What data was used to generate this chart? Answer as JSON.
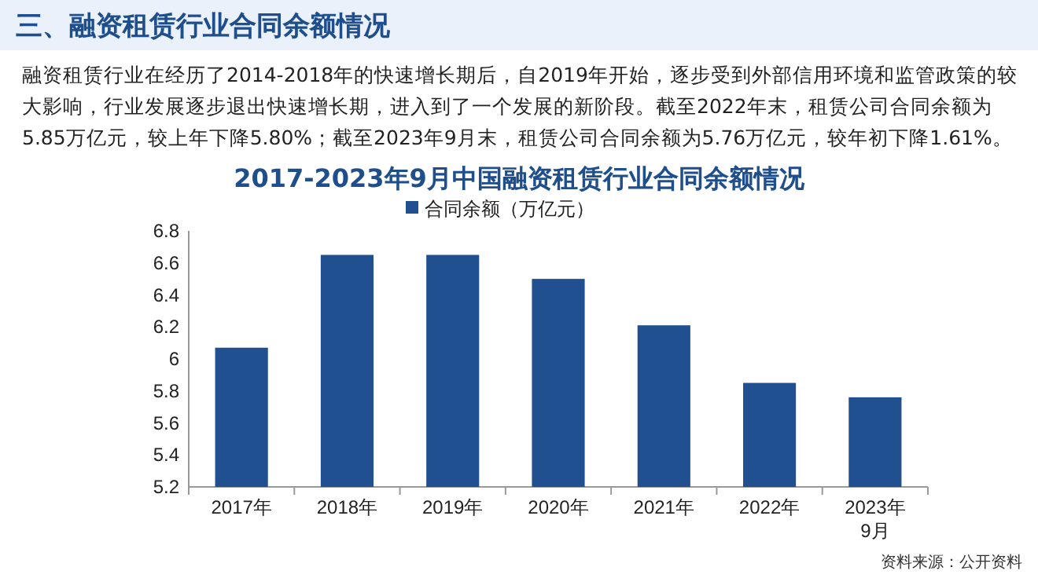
{
  "chart_data": {
    "type": "bar",
    "title": "三、融资租赁行业合同余额情况",
    "subtitle": "2017-2023年9月中国融资租赁行业合同余额情况",
    "annotations": [
      "融资租赁行业在经历了2014-2018年的快速增长期后，自2019年开始，逐步受到外部信用环境和监管政策的较大影响，行业发展逐步退出快速增长期，进入到了一个发展的新阶段。截至2022年末，租赁公司合同余额为5.85万亿元，较上年下降5.80%；截至2023年9月末，租赁公司合同余额为5.76万亿元，较年初下降1.61%。",
      "资料来源：公开资料"
    ],
    "categories": [
      "2017年",
      "2018年",
      "2019年",
      "2020年",
      "2021年",
      "2022年",
      "2023年\n9月"
    ],
    "series": [
      {
        "name": "合同余额（万亿元）",
        "color": "#20508f",
        "values": [
          6.07,
          6.65,
          6.65,
          6.5,
          6.21,
          5.85,
          5.76
        ]
      }
    ],
    "ylim": [
      5.2,
      6.8
    ],
    "yticks": [
      5.2,
      5.4,
      5.6,
      5.8,
      6,
      6.2,
      6.4,
      6.6,
      6.8
    ],
    "grid": false,
    "legend": "top"
  }
}
